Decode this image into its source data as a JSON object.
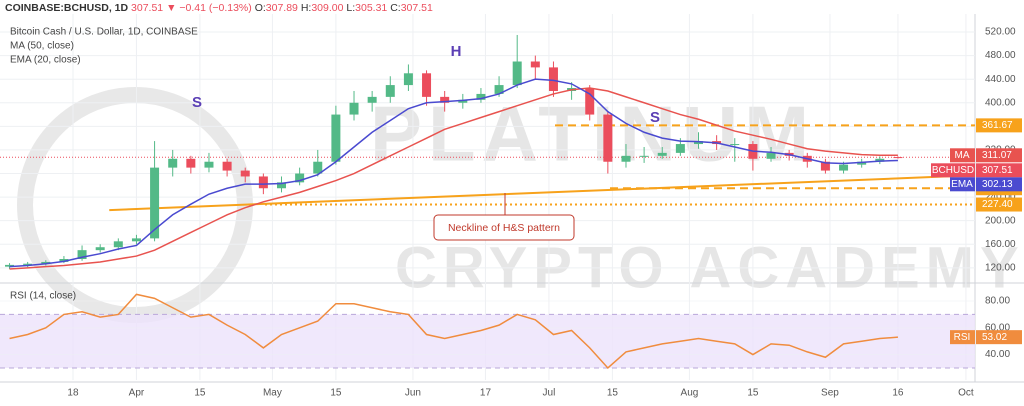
{
  "header": {
    "symbol": "COINBASE:BCHUSD, 1D",
    "last": "307.51",
    "change": "▼ −0.41 (−0.13%)",
    "ohlc": [
      {
        "k": "O:",
        "v": "307.89"
      },
      {
        "k": "H:",
        "v": "309.00"
      },
      {
        "k": "L:",
        "v": "305.31"
      },
      {
        "k": "C:",
        "v": "307.51"
      }
    ]
  },
  "watermark": [
    "PLATINUM",
    "CRYPTO ACADEMY"
  ],
  "chart_data": {
    "type": "candlestick",
    "title": "Bitcoin Cash / U.S. Dollar, 1D, COINBASE",
    "x": [
      "Mar 4",
      "Mar 8",
      "Mar 12",
      "Mar 16",
      "Mar 20",
      "Mar 24",
      "Mar 28",
      "Apr 1",
      "Apr 5",
      "Apr 9",
      "Apr 13",
      "Apr 17",
      "Apr 21",
      "Apr 25",
      "Apr 29",
      "May 3",
      "May 7",
      "May 11",
      "May 15",
      "May 19",
      "May 23",
      "May 27",
      "May 31",
      "Jun 4",
      "Jun 8",
      "Jun 12",
      "Jun 16",
      "Jun 20",
      "Jun 24",
      "Jun 28",
      "Jul 2",
      "Jul 6",
      "Jul 10",
      "Jul 14",
      "Jul 18",
      "Jul 22",
      "Jul 26",
      "Jul 30",
      "Aug 3",
      "Aug 7",
      "Aug 11",
      "Aug 15",
      "Aug 19",
      "Aug 23",
      "Aug 27",
      "Aug 31",
      "Sep 4",
      "Sep 8",
      "Sep 12",
      "Sep 16"
    ],
    "xlim": [
      "Mar 3",
      "Oct 3"
    ],
    "xticks": [
      {
        "value": "Mar 18",
        "label": "18"
      },
      {
        "value": "Apr 1",
        "label": "Apr"
      },
      {
        "value": "Apr 15",
        "label": "15"
      },
      {
        "value": "May 1",
        "label": "May"
      },
      {
        "value": "May 15",
        "label": "15"
      },
      {
        "value": "Jun 1",
        "label": "Jun"
      },
      {
        "value": "Jun 17",
        "label": "17"
      },
      {
        "value": "Jul 1",
        "label": "Jul"
      },
      {
        "value": "Jul 15",
        "label": "15"
      },
      {
        "value": "Aug 1",
        "label": "Aug"
      },
      {
        "value": "Aug 15",
        "label": "15"
      },
      {
        "value": "Sep 1",
        "label": "Sep"
      },
      {
        "value": "Sep 16",
        "label": "16"
      },
      {
        "value": "Oct 1",
        "label": "Oct"
      }
    ],
    "ylim": [
      96,
      537
    ],
    "yticks": [
      {
        "value": 120,
        "label": "120.00"
      },
      {
        "value": 160,
        "label": "160.00"
      },
      {
        "value": 200,
        "label": "200.00"
      },
      {
        "value": 240,
        "label": "240.00"
      },
      {
        "value": 280,
        "label": "280.00"
      },
      {
        "value": 320,
        "label": "320.00"
      },
      {
        "value": 360,
        "label": "360.00"
      },
      {
        "value": 400,
        "label": "400.00"
      },
      {
        "value": 440,
        "label": "440.00"
      },
      {
        "value": 480,
        "label": "480.00"
      },
      {
        "value": 520,
        "label": "520.00"
      }
    ],
    "grid": true,
    "candles": {
      "name": "BCHUSD",
      "up_color": "#53b987",
      "down_color": "#eb4d5c",
      "price_line_color": "#eb4d5c",
      "open": [
        122,
        125,
        127,
        130,
        135,
        150,
        155,
        165,
        170,
        290,
        305,
        290,
        300,
        285,
        275,
        255,
        265,
        280,
        300,
        380,
        400,
        410,
        430,
        450,
        410,
        400,
        405,
        415,
        430,
        470,
        460,
        420,
        425,
        380,
        300,
        310,
        310,
        315,
        330,
        335,
        330,
        330,
        305,
        315,
        310,
        300,
        285,
        295,
        300,
        307.89
      ],
      "high": [
        128,
        130,
        133,
        140,
        158,
        160,
        170,
        176,
        335,
        320,
        310,
        315,
        305,
        290,
        280,
        275,
        290,
        320,
        395,
        420,
        420,
        445,
        465,
        455,
        420,
        415,
        425,
        445,
        515,
        480,
        470,
        435,
        430,
        385,
        330,
        325,
        325,
        340,
        350,
        345,
        340,
        335,
        325,
        320,
        315,
        305,
        300,
        305,
        309,
        309
      ],
      "low": [
        118,
        121,
        124,
        128,
        132,
        146,
        150,
        160,
        165,
        275,
        280,
        282,
        275,
        265,
        245,
        248,
        260,
        275,
        295,
        370,
        385,
        400,
        420,
        395,
        385,
        390,
        400,
        410,
        425,
        440,
        410,
        405,
        370,
        280,
        290,
        298,
        305,
        310,
        322,
        320,
        300,
        285,
        300,
        302,
        290,
        280,
        280,
        290,
        296,
        305.31
      ],
      "close": [
        125,
        127,
        130,
        135,
        150,
        155,
        165,
        170,
        290,
        305,
        290,
        300,
        285,
        275,
        255,
        265,
        280,
        300,
        380,
        400,
        410,
        430,
        450,
        410,
        400,
        405,
        415,
        430,
        470,
        460,
        420,
        425,
        380,
        300,
        310,
        310,
        315,
        330,
        335,
        330,
        330,
        305,
        315,
        310,
        300,
        285,
        295,
        300,
        305,
        307.51
      ]
    },
    "series": [
      {
        "name": "MA (50, close)",
        "tag": "MA",
        "color": "#e8534f",
        "values": [
          118,
          120,
          122,
          124,
          127,
          130,
          135,
          140,
          150,
          165,
          180,
          195,
          210,
          222,
          232,
          240,
          248,
          258,
          268,
          280,
          295,
          310,
          325,
          340,
          355,
          365,
          375,
          385,
          395,
          405,
          415,
          422,
          425,
          420,
          410,
          400,
          390,
          380,
          372,
          362,
          352,
          345,
          338,
          330,
          322,
          318,
          315,
          312,
          311,
          311.07
        ]
      },
      {
        "name": "EMA (20, close)",
        "tag": "EMA",
        "color": "#4a4ad0",
        "values": [
          122,
          124,
          127,
          131,
          138,
          144,
          152,
          158,
          185,
          210,
          228,
          245,
          255,
          262,
          262,
          263,
          268,
          278,
          300,
          325,
          350,
          370,
          390,
          400,
          402,
          404,
          407,
          415,
          430,
          440,
          438,
          432,
          415,
          385,
          365,
          350,
          340,
          335,
          334,
          332,
          325,
          318,
          316,
          312,
          305,
          298,
          297,
          299,
          301,
          302.13
        ]
      }
    ],
    "levels": [
      {
        "value": 361.67,
        "color": "#f7a21b",
        "dash": "8 5"
      },
      {
        "value": 255.06,
        "color": "#f7a21b",
        "dash": "8 5"
      },
      {
        "value": {
          "value": 227.4,
          "label": "227.40"
        },
        "color": "#f7a21b",
        "dash": "2 3"
      }
    ],
    "neckline": {
      "x": [
        "Mar 26",
        "Oct 3"
      ],
      "values": [
        218,
        277
      ],
      "color": "#f7a21b"
    },
    "annotations": [
      "S",
      "H",
      "S"
    ],
    "callout": "Neckline of H&S pattern",
    "rsi": {
      "name": "RSI (14, close)",
      "tag": "RSI",
      "color": "#f08c3e",
      "band_color": "#ece2fb",
      "values": [
        52,
        55,
        60,
        70,
        72,
        68,
        70,
        85,
        82,
        75,
        68,
        70,
        62,
        55,
        45,
        55,
        60,
        65,
        78,
        78,
        75,
        72,
        70,
        55,
        52,
        55,
        58,
        62,
        70,
        66,
        55,
        58,
        45,
        30,
        42,
        45,
        48,
        50,
        52,
        50,
        48,
        40,
        48,
        47,
        42,
        38,
        48,
        50,
        52,
        53.02
      ],
      "ylim": [
        21,
        92
      ],
      "yticks": [
        {
          "value": 40,
          "label": "40.00"
        },
        {
          "value": 60,
          "label": "60.00"
        },
        {
          "value": 80,
          "label": "80.00"
        }
      ],
      "band": [
        30,
        70
      ]
    }
  }
}
